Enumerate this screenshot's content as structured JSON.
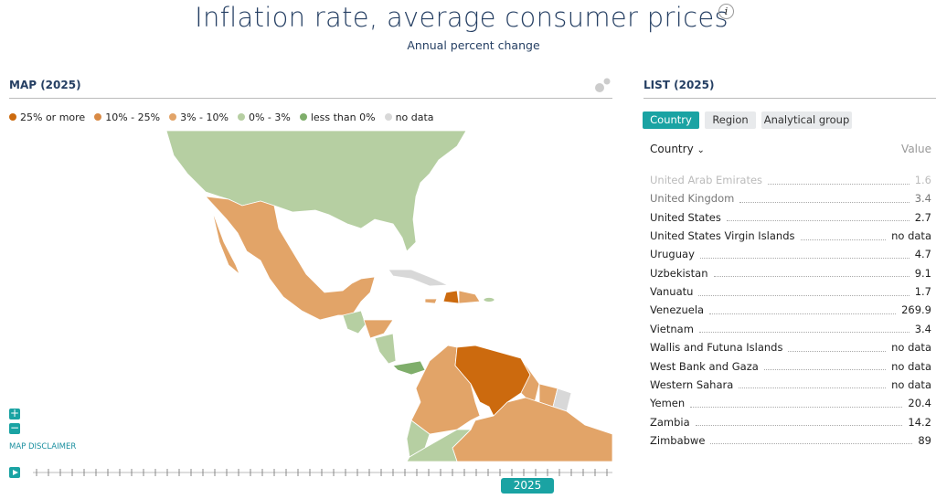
{
  "header": {
    "title": "Inflation rate, average consumer prices",
    "subtitle": "Annual percent change"
  },
  "map": {
    "title": "MAP (2025)",
    "legend": [
      {
        "label": "25% or more",
        "color": "#cc6a0e"
      },
      {
        "label": "10% - 25%",
        "color": "#d98a45"
      },
      {
        "label": "3% - 10%",
        "color": "#e2a468"
      },
      {
        "label": "0% - 3%",
        "color": "#b6cfa2"
      },
      {
        "label": "less than 0%",
        "color": "#7fae6b"
      },
      {
        "label": "no data",
        "color": "#d8d8d8"
      }
    ],
    "disclaimer": "MAP DISCLAIMER",
    "timeline_label": "2025"
  },
  "list": {
    "title": "LIST (2025)",
    "tabs": [
      "Country",
      "Region",
      "Analytical group"
    ],
    "columns": [
      "Country",
      "Value"
    ],
    "rows": [
      [
        "United Arab Emirates",
        1.6
      ],
      [
        "United Kingdom",
        3.4
      ],
      [
        "United States",
        2.7
      ],
      [
        "United States Virgin Islands",
        "no data"
      ],
      [
        "Uruguay",
        4.7
      ],
      [
        "Uzbekistan",
        9.1
      ],
      [
        "Vanuatu",
        1.7
      ],
      [
        "Venezuela",
        269.9
      ],
      [
        "Vietnam",
        3.4
      ],
      [
        "Wallis and Futuna Islands",
        "no data"
      ],
      [
        "West Bank and Gaza",
        "no data"
      ],
      [
        "Western Sahara",
        "no data"
      ],
      [
        "Yemen",
        20.4
      ],
      [
        "Zambia",
        14.2
      ],
      [
        "Zimbabwe",
        89
      ]
    ]
  }
}
